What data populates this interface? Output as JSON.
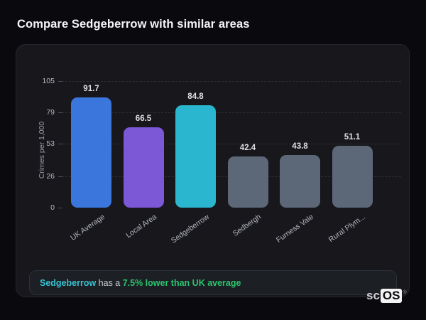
{
  "page": {
    "title": "Compare Sedgeberrow with similar areas",
    "background_color": "#0a0a0e"
  },
  "card": {
    "background_color": "#17171c",
    "border_color": "#26262e"
  },
  "chart_data": {
    "type": "bar",
    "title": "",
    "xlabel": "",
    "ylabel": "Crimes per 1,000",
    "ylim": [
      0,
      105
    ],
    "yticks": [
      0,
      26,
      53,
      79,
      105
    ],
    "grid": "horizontal dashed",
    "legend": "none",
    "categories": [
      "UK Average",
      "Local Area",
      "Sedgeberrow",
      "Sedbergh",
      "Furness Vale",
      "Rural Plym..."
    ],
    "values": [
      91.7,
      66.5,
      84.8,
      42.4,
      43.8,
      51.1
    ],
    "value_labels": [
      "91.7",
      "66.5",
      "84.8",
      "42.4",
      "43.8",
      "51.1"
    ],
    "bar_colors": [
      "#3b76dc",
      "#7c57d6",
      "#29b6ce",
      "#5c6878",
      "#5c6878",
      "#5c6878"
    ],
    "highlighted_category": "Sedgeberrow"
  },
  "note": {
    "area_name": "Sedgeberrow",
    "middle_text": " has a ",
    "highlight_text": "7.5% lower than UK average",
    "area_color": "#38c3d2",
    "highlight_color": "#2bc46e"
  },
  "logo": {
    "prefix": "sc",
    "suffix": "OS",
    "registered_mark": "®"
  }
}
